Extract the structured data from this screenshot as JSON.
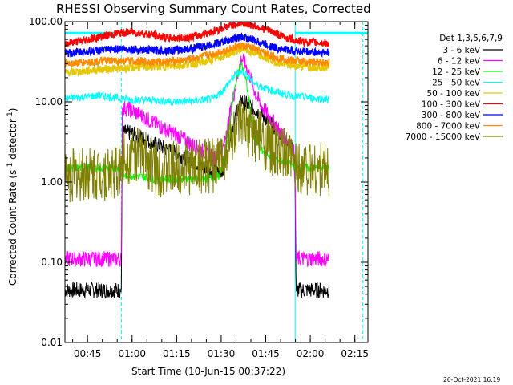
{
  "chart_data": {
    "type": "line",
    "title": "RHESSI Observing Summary Count Rates, Corrected",
    "xlabel": "Start Time (10-Jun-15 00:37:22)",
    "ylabel": "Corrected Count Rate (s",
    "ylabel_sup1": "-1",
    "ylabel_mid": " detector",
    "ylabel_sup2": "-1",
    "ylabel_end": ")",
    "yscale": "log",
    "ylim": [
      0.01,
      100
    ],
    "xlim_minutes": [
      0,
      102
    ],
    "y_ticks": [
      {
        "value": 100,
        "label": "100.00"
      },
      {
        "value": 10,
        "label": "10.00"
      },
      {
        "value": 1,
        "label": "1.00"
      },
      {
        "value": 0.1,
        "label": "0.10"
      },
      {
        "value": 0.01,
        "label": "0.01"
      }
    ],
    "x_ticks": [
      {
        "minute": 7.6,
        "label": "00:45"
      },
      {
        "minute": 22.6,
        "label": "01:00"
      },
      {
        "minute": 37.6,
        "label": "01:15"
      },
      {
        "minute": 52.6,
        "label": "01:30"
      },
      {
        "minute": 67.6,
        "label": "01:45"
      },
      {
        "minute": 82.6,
        "label": "02:00"
      },
      {
        "minute": 97.6,
        "label": "02:15"
      }
    ],
    "legend_title": "Det 1,3,5,6,7,9",
    "series": [
      {
        "name": "3 - 6 keV",
        "color": "#000000",
        "points": [
          [
            0,
            0.045
          ],
          [
            19,
            0.045
          ],
          [
            19.3,
            4.2
          ],
          [
            22,
            4.1
          ],
          [
            26,
            3.6
          ],
          [
            30,
            3.0
          ],
          [
            34,
            2.6
          ],
          [
            38,
            2.2
          ],
          [
            42,
            1.9
          ],
          [
            46,
            1.6
          ],
          [
            49,
            1.4
          ],
          [
            51,
            1.3
          ],
          [
            53,
            1.4
          ],
          [
            54.5,
            2.2
          ],
          [
            56,
            4.2
          ],
          [
            58,
            8.0
          ],
          [
            59.5,
            10.5
          ],
          [
            61,
            9.5
          ],
          [
            63,
            8.5
          ],
          [
            66,
            7.0
          ],
          [
            69,
            5.5
          ],
          [
            72,
            4.2
          ],
          [
            75,
            3.2
          ],
          [
            77,
            2.5
          ],
          [
            77.5,
            1.0
          ],
          [
            77.8,
            0.045
          ],
          [
            89,
            0.045
          ]
        ]
      },
      {
        "name": "6 - 12 keV",
        "color": "#ff00ff",
        "points": [
          [
            0,
            0.11
          ],
          [
            19,
            0.11
          ],
          [
            19.3,
            8.5
          ],
          [
            22,
            8.0
          ],
          [
            25,
            7.0
          ],
          [
            28,
            6.0
          ],
          [
            31,
            5.2
          ],
          [
            34,
            4.5
          ],
          [
            37,
            4.0
          ],
          [
            40,
            3.4
          ],
          [
            43,
            2.9
          ],
          [
            46,
            2.5
          ],
          [
            49,
            2.1
          ],
          [
            51,
            2.0
          ],
          [
            53,
            2.4
          ],
          [
            55,
            5.5
          ],
          [
            57,
            13.0
          ],
          [
            58.5,
            25.0
          ],
          [
            59.5,
            35.0
          ],
          [
            61,
            28.0
          ],
          [
            62.5,
            20.0
          ],
          [
            64,
            13.0
          ],
          [
            66,
            9.0
          ],
          [
            69,
            6.5
          ],
          [
            72,
            4.5
          ],
          [
            75,
            3.2
          ],
          [
            77,
            2.5
          ],
          [
            77.5,
            1.0
          ],
          [
            77.8,
            0.11
          ],
          [
            89,
            0.11
          ]
        ]
      },
      {
        "name": "12 - 25 keV",
        "color": "#00ff00",
        "points": [
          [
            0,
            1.5
          ],
          [
            19,
            1.5
          ],
          [
            19.3,
            1.2
          ],
          [
            24,
            1.2
          ],
          [
            30,
            1.1
          ],
          [
            36,
            1.1
          ],
          [
            42,
            1.1
          ],
          [
            48,
            1.1
          ],
          [
            52,
            1.2
          ],
          [
            54,
            2.0
          ],
          [
            56,
            8.0
          ],
          [
            58,
            22.0
          ],
          [
            59.5,
            30.0
          ],
          [
            61,
            18.0
          ],
          [
            62.5,
            8.0
          ],
          [
            64,
            3.5
          ],
          [
            66,
            2.5
          ],
          [
            70,
            2.0
          ],
          [
            74,
            1.8
          ],
          [
            77,
            1.6
          ],
          [
            77.8,
            1.5
          ],
          [
            89,
            1.5
          ]
        ]
      },
      {
        "name": "25 - 50 keV",
        "color": "#00ffff",
        "points": [
          [
            0,
            11.0
          ],
          [
            6,
            11.5
          ],
          [
            12,
            12.0
          ],
          [
            19,
            11.0
          ],
          [
            24,
            10.5
          ],
          [
            30,
            10.5
          ],
          [
            36,
            10.0
          ],
          [
            42,
            10.2
          ],
          [
            46,
            10.5
          ],
          [
            50,
            11.0
          ],
          [
            53,
            13.5
          ],
          [
            56,
            19.0
          ],
          [
            58,
            23.0
          ],
          [
            59.5,
            24.0
          ],
          [
            61,
            22.0
          ],
          [
            63,
            18.0
          ],
          [
            65,
            16.0
          ],
          [
            68,
            14.5
          ],
          [
            72,
            13.0
          ],
          [
            76,
            12.0
          ],
          [
            80,
            11.5
          ],
          [
            85,
            11.0
          ],
          [
            89,
            10.8
          ]
        ]
      },
      {
        "name": "50 - 100 keV",
        "color": "#e6c800",
        "points": [
          [
            0,
            23.0
          ],
          [
            6,
            24.0
          ],
          [
            12,
            25.5
          ],
          [
            19,
            26.0
          ],
          [
            24,
            27.0
          ],
          [
            30,
            27.5
          ],
          [
            36,
            28.0
          ],
          [
            42,
            29.5
          ],
          [
            48,
            32.0
          ],
          [
            54,
            38.0
          ],
          [
            58,
            44.0
          ],
          [
            60,
            46.0
          ],
          [
            62,
            43.0
          ],
          [
            66,
            37.0
          ],
          [
            70,
            32.0
          ],
          [
            75,
            29.0
          ],
          [
            80,
            28.0
          ],
          [
            85,
            27.5
          ],
          [
            89,
            27.0
          ]
        ]
      },
      {
        "name": "100 - 300 keV",
        "color": "#ff0000",
        "points": [
          [
            0,
            54.0
          ],
          [
            6,
            58.0
          ],
          [
            12,
            65.0
          ],
          [
            18,
            72.0
          ],
          [
            22,
            74.0
          ],
          [
            26,
            72.0
          ],
          [
            30,
            68.0
          ],
          [
            34,
            63.0
          ],
          [
            38,
            62.0
          ],
          [
            44,
            66.0
          ],
          [
            50,
            76.0
          ],
          [
            55,
            88.0
          ],
          [
            59,
            96.0
          ],
          [
            62,
            93.0
          ],
          [
            66,
            84.0
          ],
          [
            70,
            74.0
          ],
          [
            74,
            64.0
          ],
          [
            78,
            58.0
          ],
          [
            84,
            55.0
          ],
          [
            89,
            54.0
          ]
        ]
      },
      {
        "name": "300 - 800 keV",
        "color": "#0000ff",
        "points": [
          [
            0,
            40.0
          ],
          [
            6,
            42.0
          ],
          [
            12,
            44.0
          ],
          [
            18,
            46.0
          ],
          [
            24,
            45.0
          ],
          [
            30,
            44.0
          ],
          [
            36,
            44.0
          ],
          [
            42,
            46.0
          ],
          [
            48,
            50.0
          ],
          [
            54,
            57.0
          ],
          [
            58,
            63.0
          ],
          [
            60,
            64.0
          ],
          [
            63,
            60.0
          ],
          [
            67,
            53.0
          ],
          [
            71,
            47.0
          ],
          [
            76,
            44.0
          ],
          [
            82,
            42.0
          ],
          [
            89,
            41.0
          ]
        ]
      },
      {
        "name": "800 - 7000 keV",
        "color": "#ff8c00",
        "points": [
          [
            0,
            30.0
          ],
          [
            6,
            31.0
          ],
          [
            12,
            32.0
          ],
          [
            18,
            32.5
          ],
          [
            24,
            32.0
          ],
          [
            30,
            31.5
          ],
          [
            36,
            32.0
          ],
          [
            42,
            34.0
          ],
          [
            48,
            38.0
          ],
          [
            54,
            44.0
          ],
          [
            58,
            49.0
          ],
          [
            60,
            50.0
          ],
          [
            63,
            47.0
          ],
          [
            67,
            41.0
          ],
          [
            71,
            36.0
          ],
          [
            76,
            33.0
          ],
          [
            82,
            31.5
          ],
          [
            89,
            31.0
          ]
        ]
      },
      {
        "name": "7000 - 15000 keV",
        "color": "#808000",
        "points": [
          [
            0,
            1.2
          ],
          [
            8,
            1.25
          ],
          [
            15,
            1.3
          ],
          [
            19,
            1.4
          ],
          [
            19.3,
            2.0
          ],
          [
            24,
            2.2
          ],
          [
            27,
            2.0
          ],
          [
            29,
            1.6
          ],
          [
            33,
            1.4
          ],
          [
            38,
            1.5
          ],
          [
            42,
            1.5
          ],
          [
            46,
            1.6
          ],
          [
            50,
            1.6
          ],
          [
            53,
            2.0
          ],
          [
            55,
            3.0
          ],
          [
            57,
            4.0
          ],
          [
            59,
            4.8
          ],
          [
            61,
            4.5
          ],
          [
            64,
            4.0
          ],
          [
            67,
            3.2
          ],
          [
            70,
            2.6
          ],
          [
            73,
            2.2
          ],
          [
            76,
            1.9
          ],
          [
            78,
            1.6
          ],
          [
            83,
            1.5
          ],
          [
            89,
            1.4
          ]
        ]
      }
    ]
  },
  "footer_timestamp": "26-Oct-2021 16:19"
}
